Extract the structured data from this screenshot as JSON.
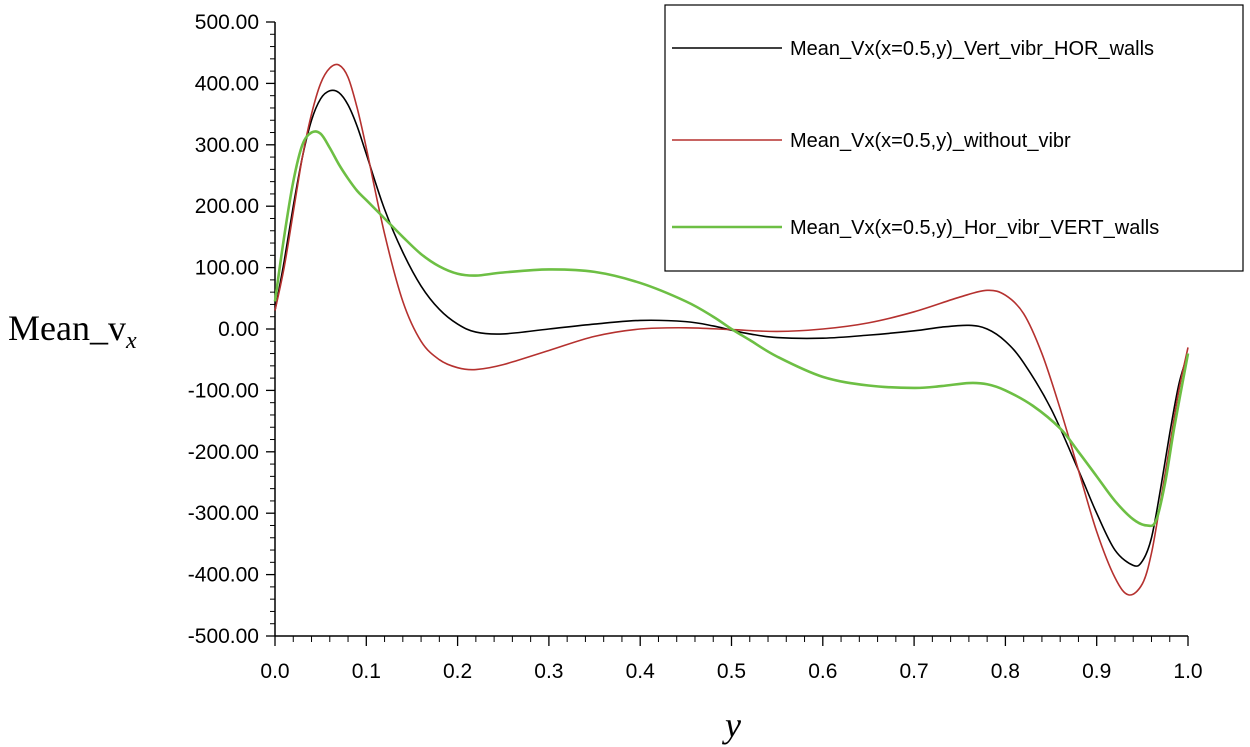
{
  "chart_data": {
    "type": "line",
    "title": "",
    "xlabel": "y",
    "ylabel": {
      "main": "Mean_v",
      "subscript": "x"
    },
    "xlim": [
      0.0,
      1.0
    ],
    "ylim": [
      -500,
      500
    ],
    "x_ticks": [
      "0.0",
      "0.1",
      "0.2",
      "0.3",
      "0.4",
      "0.5",
      "0.6",
      "0.7",
      "0.8",
      "0.9",
      "1.0"
    ],
    "y_ticks": [
      "500.00",
      "400.00",
      "300.00",
      "200.00",
      "100.00",
      "0.00",
      "-100.00",
      "-200.00",
      "-300.00",
      "-400.00",
      "-500.00"
    ],
    "grid": false,
    "legend_position": "top-right",
    "series": [
      {
        "name": "Mean_Vx(x=0.5,y)_Vert_vibr_HOR_walls",
        "color": "#000000",
        "points": [
          [
            0.0,
            30
          ],
          [
            0.01,
            110
          ],
          [
            0.02,
            200
          ],
          [
            0.03,
            280
          ],
          [
            0.04,
            340
          ],
          [
            0.05,
            375
          ],
          [
            0.06,
            388
          ],
          [
            0.07,
            385
          ],
          [
            0.08,
            365
          ],
          [
            0.09,
            330
          ],
          [
            0.1,
            285
          ],
          [
            0.12,
            195
          ],
          [
            0.14,
            125
          ],
          [
            0.16,
            70
          ],
          [
            0.18,
            32
          ],
          [
            0.2,
            8
          ],
          [
            0.22,
            -5
          ],
          [
            0.25,
            -8
          ],
          [
            0.3,
            0
          ],
          [
            0.35,
            8
          ],
          [
            0.4,
            14
          ],
          [
            0.45,
            12
          ],
          [
            0.48,
            5
          ],
          [
            0.5,
            -2
          ],
          [
            0.52,
            -8
          ],
          [
            0.55,
            -14
          ],
          [
            0.6,
            -15
          ],
          [
            0.65,
            -10
          ],
          [
            0.7,
            -3
          ],
          [
            0.73,
            3
          ],
          [
            0.76,
            6
          ],
          [
            0.78,
            0
          ],
          [
            0.8,
            -20
          ],
          [
            0.82,
            -55
          ],
          [
            0.85,
            -130
          ],
          [
            0.88,
            -230
          ],
          [
            0.9,
            -300
          ],
          [
            0.92,
            -360
          ],
          [
            0.94,
            -385
          ],
          [
            0.95,
            -378
          ],
          [
            0.96,
            -340
          ],
          [
            0.97,
            -260
          ],
          [
            0.98,
            -170
          ],
          [
            0.99,
            -90
          ],
          [
            1.0,
            -40
          ]
        ]
      },
      {
        "name": "Mean_Vx(x=0.5,y)_without_vibr",
        "color": "#b5312f",
        "points": [
          [
            0.0,
            30
          ],
          [
            0.01,
            100
          ],
          [
            0.02,
            190
          ],
          [
            0.03,
            280
          ],
          [
            0.04,
            350
          ],
          [
            0.05,
            400
          ],
          [
            0.06,
            425
          ],
          [
            0.07,
            430
          ],
          [
            0.08,
            410
          ],
          [
            0.09,
            360
          ],
          [
            0.1,
            295
          ],
          [
            0.12,
            155
          ],
          [
            0.14,
            45
          ],
          [
            0.16,
            -20
          ],
          [
            0.18,
            -50
          ],
          [
            0.2,
            -63
          ],
          [
            0.22,
            -66
          ],
          [
            0.25,
            -58
          ],
          [
            0.3,
            -35
          ],
          [
            0.35,
            -12
          ],
          [
            0.4,
            0
          ],
          [
            0.45,
            2
          ],
          [
            0.5,
            -1
          ],
          [
            0.55,
            -4
          ],
          [
            0.6,
            0
          ],
          [
            0.65,
            10
          ],
          [
            0.7,
            28
          ],
          [
            0.75,
            52
          ],
          [
            0.78,
            63
          ],
          [
            0.8,
            55
          ],
          [
            0.82,
            25
          ],
          [
            0.84,
            -40
          ],
          [
            0.86,
            -130
          ],
          [
            0.88,
            -230
          ],
          [
            0.9,
            -330
          ],
          [
            0.92,
            -405
          ],
          [
            0.935,
            -433
          ],
          [
            0.95,
            -415
          ],
          [
            0.96,
            -365
          ],
          [
            0.97,
            -280
          ],
          [
            0.98,
            -190
          ],
          [
            0.99,
            -100
          ],
          [
            1.0,
            -30
          ]
        ]
      },
      {
        "name": "Mean_Vx(x=0.5,y)_Hor_vibr_VERT_walls",
        "color": "#6dbf44",
        "points": [
          [
            0.0,
            45
          ],
          [
            0.01,
            150
          ],
          [
            0.02,
            240
          ],
          [
            0.03,
            300
          ],
          [
            0.04,
            320
          ],
          [
            0.05,
            318
          ],
          [
            0.06,
            295
          ],
          [
            0.07,
            268
          ],
          [
            0.08,
            245
          ],
          [
            0.09,
            225
          ],
          [
            0.1,
            210
          ],
          [
            0.12,
            180
          ],
          [
            0.14,
            150
          ],
          [
            0.16,
            122
          ],
          [
            0.18,
            102
          ],
          [
            0.2,
            90
          ],
          [
            0.22,
            87
          ],
          [
            0.25,
            92
          ],
          [
            0.3,
            97
          ],
          [
            0.35,
            93
          ],
          [
            0.4,
            75
          ],
          [
            0.45,
            45
          ],
          [
            0.48,
            20
          ],
          [
            0.5,
            0
          ],
          [
            0.52,
            -18
          ],
          [
            0.55,
            -45
          ],
          [
            0.6,
            -78
          ],
          [
            0.65,
            -92
          ],
          [
            0.7,
            -96
          ],
          [
            0.73,
            -93
          ],
          [
            0.76,
            -88
          ],
          [
            0.78,
            -90
          ],
          [
            0.8,
            -100
          ],
          [
            0.83,
            -125
          ],
          [
            0.86,
            -162
          ],
          [
            0.88,
            -200
          ],
          [
            0.9,
            -240
          ],
          [
            0.92,
            -280
          ],
          [
            0.94,
            -310
          ],
          [
            0.955,
            -320
          ],
          [
            0.965,
            -312
          ],
          [
            0.975,
            -250
          ],
          [
            0.985,
            -160
          ],
          [
            1.0,
            -40
          ]
        ]
      }
    ]
  }
}
